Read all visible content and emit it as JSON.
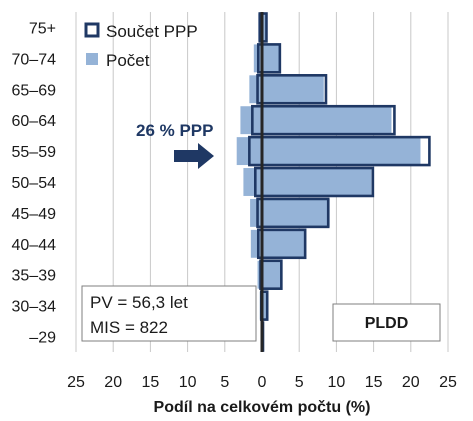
{
  "chart_data": {
    "type": "bar",
    "orientation": "horizontal-population-pyramid",
    "categories": [
      "75+",
      "70–74",
      "65–69",
      "60–64",
      "55–59",
      "50–54",
      "45–49",
      "40–44",
      "35–39",
      "30–34",
      "–29"
    ],
    "series": [
      {
        "name": "Součet PPP",
        "style": "outline",
        "left": [
          0.3,
          0.5,
          0.6,
          1.3,
          1.7,
          0.9,
          0.6,
          0.5,
          0.2,
          0.1,
          0.0
        ],
        "right": [
          0.6,
          2.4,
          8.6,
          17.8,
          22.5,
          14.9,
          8.9,
          5.8,
          2.6,
          0.7,
          0.1
        ]
      },
      {
        "name": "Počet",
        "style": "fill",
        "left": [
          0.5,
          1.1,
          1.7,
          2.9,
          3.4,
          2.5,
          1.6,
          1.5,
          0.6,
          0.3,
          0.1
        ],
        "right": [
          0.5,
          2.3,
          8.3,
          17.4,
          21.3,
          14.7,
          9.1,
          5.8,
          2.7,
          0.8,
          0.1
        ]
      }
    ],
    "xlabel": "Podíl na celkovém počtu (%)",
    "xlim": [
      -25,
      25
    ],
    "xticks": [
      "25",
      "20",
      "15",
      "10",
      "5",
      "0",
      "5",
      "10",
      "15",
      "20",
      "25"
    ],
    "grid": "vertical",
    "legend": "top-left",
    "colors": {
      "fill": "#95b3d7",
      "outline": "#1f3864",
      "grid": "#c8c8c8",
      "axis": "#262626"
    }
  },
  "annotation": {
    "text": "26 % PPP",
    "category": "55–59"
  },
  "stats": {
    "line1": "PV = 56,3 let",
    "line2": "MIS = 822"
  },
  "badge": "PLDD"
}
